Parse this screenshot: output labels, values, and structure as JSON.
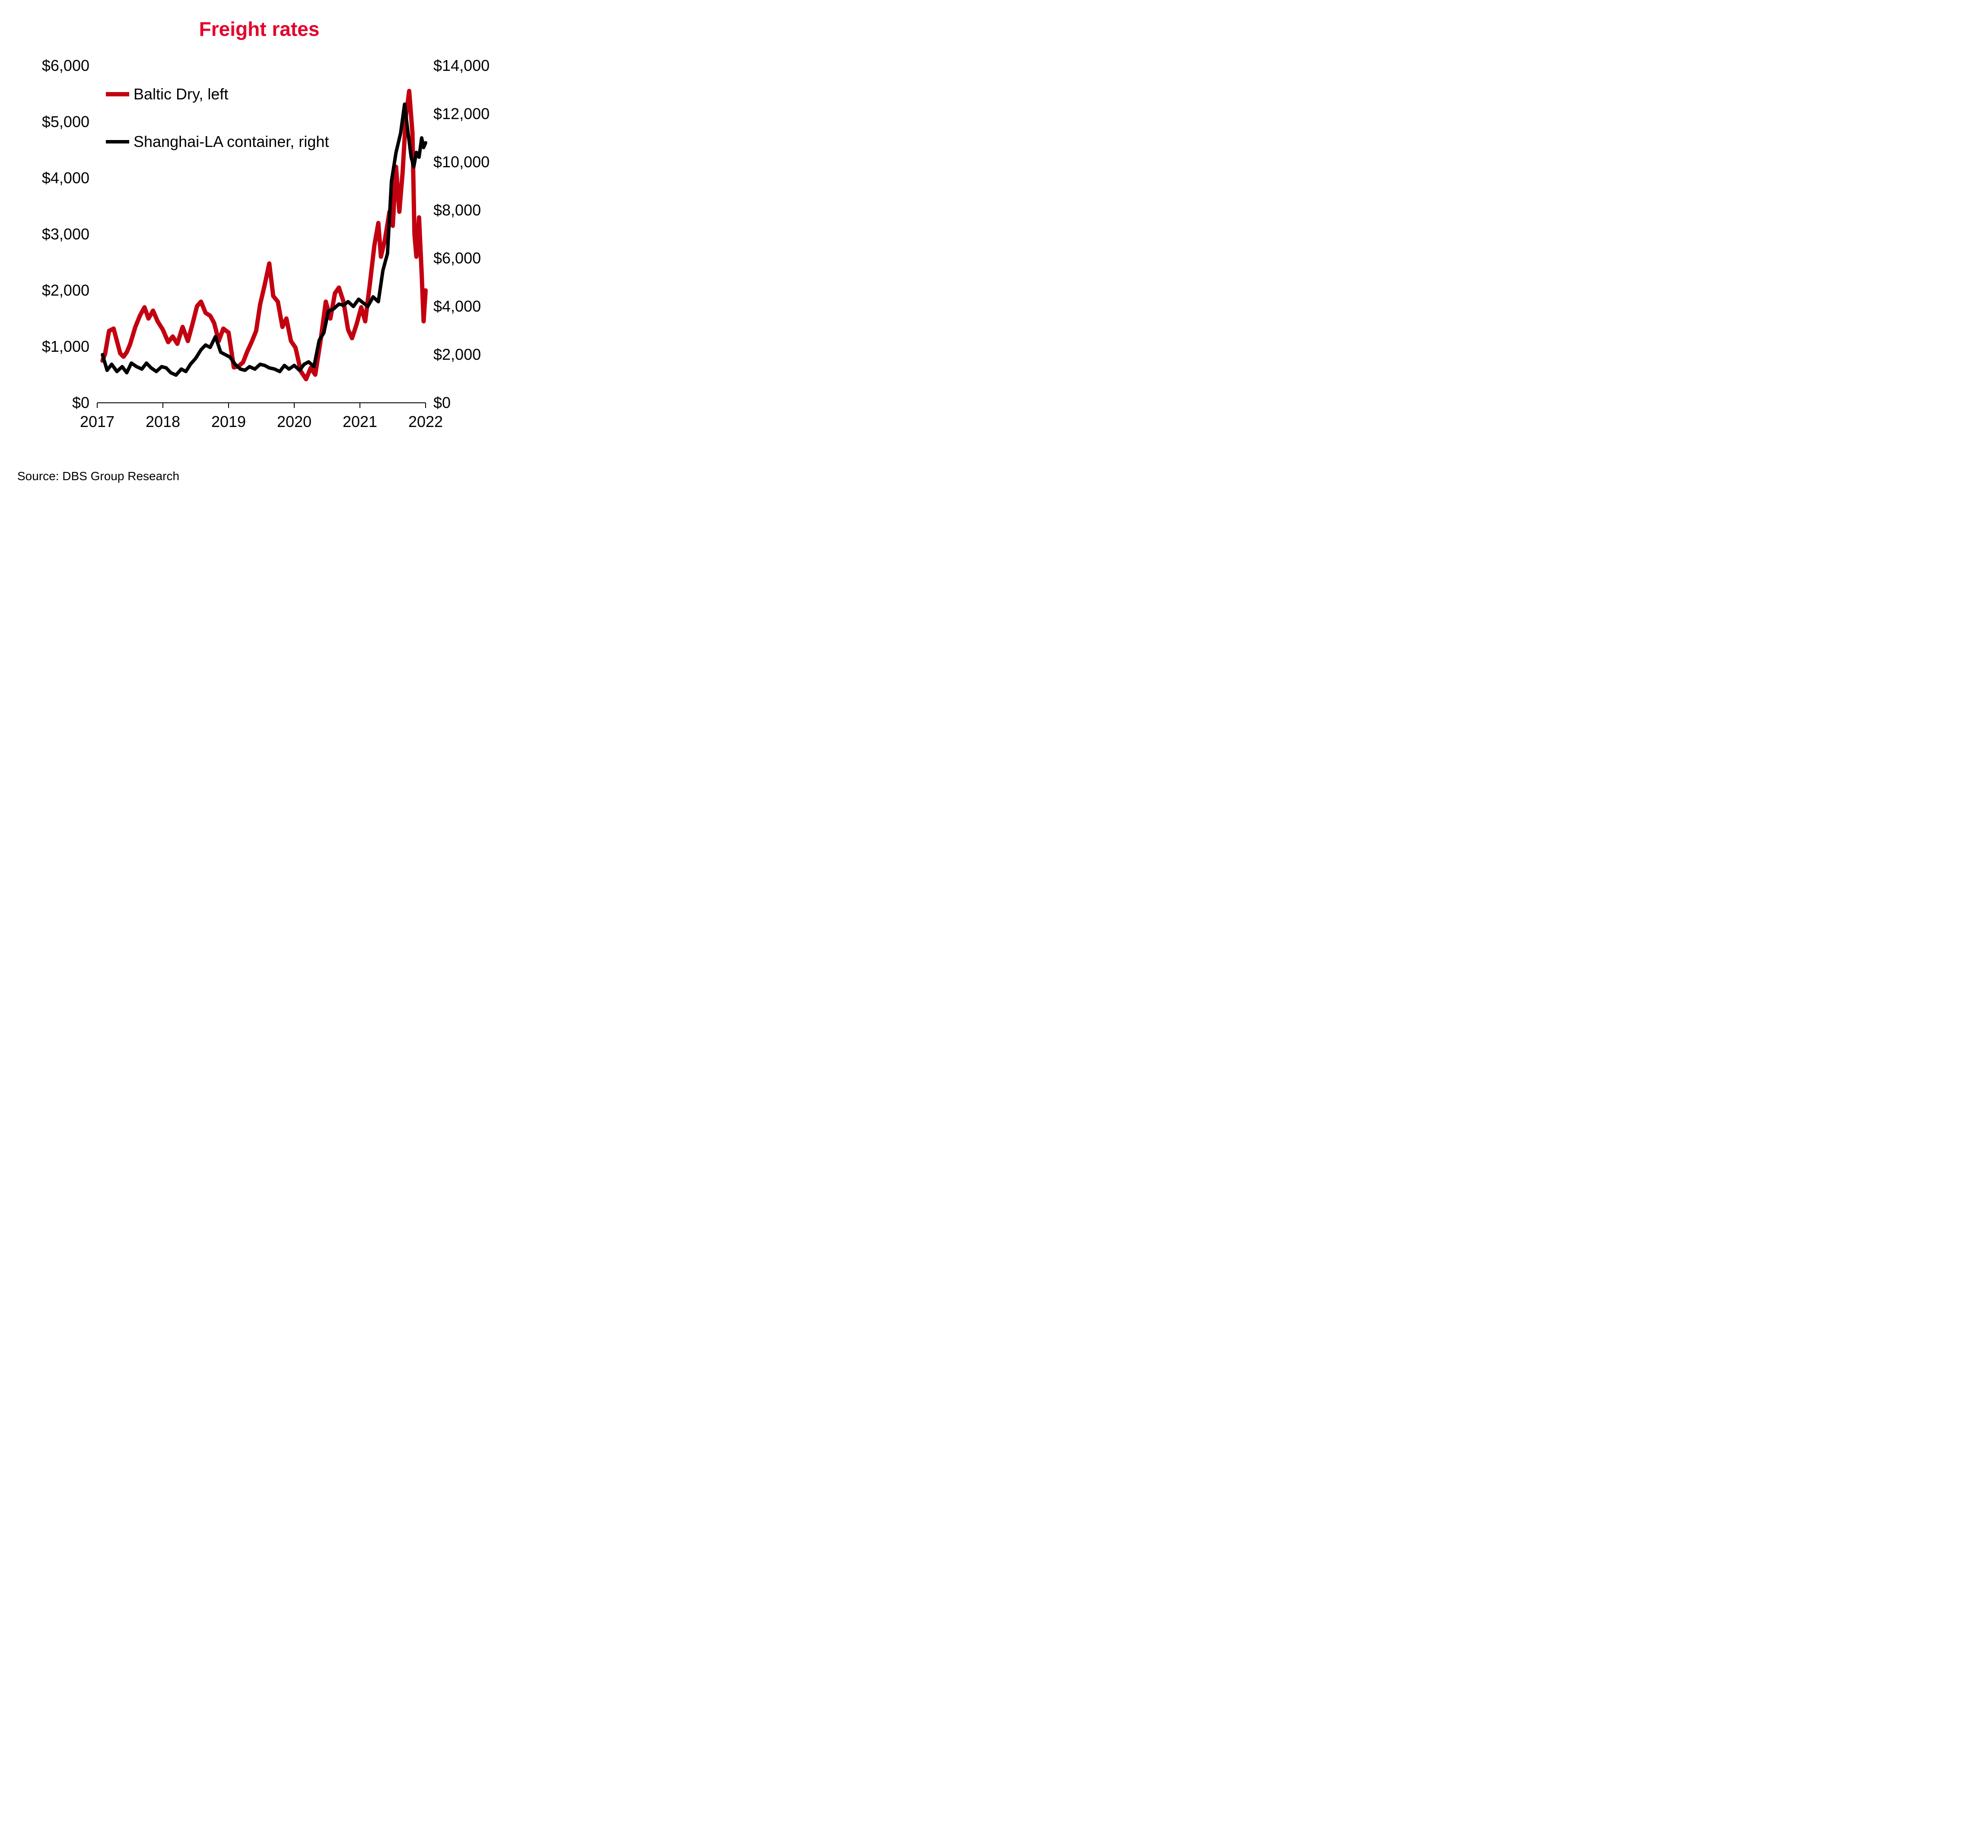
{
  "chart": {
    "type": "line",
    "title": "Freight rates",
    "title_color": "#e4002b",
    "title_fontsize": 46,
    "title_fontweight": 700,
    "background_color": "#ffffff",
    "axis_color": "#000000",
    "text_color": "#000000",
    "tick_fontsize": 36,
    "tick_fontweight": 400,
    "line_width": 8,
    "x": {
      "min": 2017,
      "max": 2022,
      "ticks": [
        2017,
        2018,
        2019,
        2020,
        2021,
        2022
      ],
      "tick_labels": [
        "2017",
        "2018",
        "2019",
        "2020",
        "2021",
        "2022"
      ]
    },
    "y_left": {
      "min": 0,
      "max": 6000,
      "step": 1000,
      "ticks": [
        0,
        1000,
        2000,
        3000,
        4000,
        5000,
        6000
      ],
      "tick_labels": [
        "$0",
        "$1,000",
        "$2,000",
        "$3,000",
        "$4,000",
        "$5,000",
        "$6,000"
      ]
    },
    "y_right": {
      "min": 0,
      "max": 14000,
      "step": 2000,
      "ticks": [
        0,
        2000,
        4000,
        6000,
        8000,
        10000,
        12000,
        14000
      ],
      "tick_labels": [
        "$0",
        "$2,000",
        "$4,000",
        "$6,000",
        "$8,000",
        "$10,000",
        "$12,000",
        "$14,000"
      ]
    },
    "legend": {
      "items": [
        {
          "label": "Baltic Dry, left",
          "color": "#c30010",
          "swatch_width": 54,
          "swatch_height": 10
        },
        {
          "label": "Shanghai-LA container, right",
          "color": "#000000",
          "swatch_width": 54,
          "swatch_height": 8
        }
      ],
      "fontsize": 36,
      "position": "inside-top-left"
    },
    "series": [
      {
        "name": "Baltic Dry",
        "axis": "left",
        "color": "#c30010",
        "line_width": 10,
        "data": [
          [
            2017.08,
            750
          ],
          [
            2017.12,
            870
          ],
          [
            2017.18,
            1280
          ],
          [
            2017.25,
            1320
          ],
          [
            2017.3,
            1100
          ],
          [
            2017.35,
            880
          ],
          [
            2017.4,
            820
          ],
          [
            2017.45,
            900
          ],
          [
            2017.5,
            1040
          ],
          [
            2017.58,
            1350
          ],
          [
            2017.65,
            1550
          ],
          [
            2017.72,
            1700
          ],
          [
            2017.78,
            1500
          ],
          [
            2017.85,
            1640
          ],
          [
            2017.92,
            1450
          ],
          [
            2018.0,
            1300
          ],
          [
            2018.08,
            1080
          ],
          [
            2018.15,
            1180
          ],
          [
            2018.22,
            1050
          ],
          [
            2018.3,
            1350
          ],
          [
            2018.38,
            1100
          ],
          [
            2018.45,
            1400
          ],
          [
            2018.52,
            1720
          ],
          [
            2018.58,
            1800
          ],
          [
            2018.65,
            1600
          ],
          [
            2018.72,
            1550
          ],
          [
            2018.78,
            1420
          ],
          [
            2018.85,
            1100
          ],
          [
            2018.92,
            1320
          ],
          [
            2019.0,
            1250
          ],
          [
            2019.08,
            630
          ],
          [
            2019.15,
            650
          ],
          [
            2019.22,
            720
          ],
          [
            2019.28,
            900
          ],
          [
            2019.35,
            1080
          ],
          [
            2019.42,
            1280
          ],
          [
            2019.48,
            1750
          ],
          [
            2019.55,
            2100
          ],
          [
            2019.62,
            2480
          ],
          [
            2019.68,
            1900
          ],
          [
            2019.75,
            1800
          ],
          [
            2019.82,
            1350
          ],
          [
            2019.88,
            1500
          ],
          [
            2019.95,
            1100
          ],
          [
            2020.02,
            980
          ],
          [
            2020.1,
            560
          ],
          [
            2020.18,
            420
          ],
          [
            2020.25,
            620
          ],
          [
            2020.32,
            500
          ],
          [
            2020.4,
            1100
          ],
          [
            2020.48,
            1800
          ],
          [
            2020.55,
            1500
          ],
          [
            2020.62,
            1950
          ],
          [
            2020.68,
            2050
          ],
          [
            2020.75,
            1800
          ],
          [
            2020.82,
            1300
          ],
          [
            2020.88,
            1150
          ],
          [
            2020.95,
            1400
          ],
          [
            2021.02,
            1700
          ],
          [
            2021.08,
            1450
          ],
          [
            2021.15,
            2100
          ],
          [
            2021.22,
            2800
          ],
          [
            2021.28,
            3200
          ],
          [
            2021.32,
            2600
          ],
          [
            2021.38,
            2900
          ],
          [
            2021.45,
            3400
          ],
          [
            2021.5,
            3150
          ],
          [
            2021.55,
            4200
          ],
          [
            2021.6,
            3400
          ],
          [
            2021.65,
            4100
          ],
          [
            2021.7,
            5100
          ],
          [
            2021.75,
            5550
          ],
          [
            2021.8,
            4800
          ],
          [
            2021.83,
            3000
          ],
          [
            2021.86,
            2600
          ],
          [
            2021.9,
            3300
          ],
          [
            2021.94,
            2300
          ],
          [
            2021.97,
            1450
          ],
          [
            2022.0,
            2000
          ]
        ]
      },
      {
        "name": "Shanghai-LA container",
        "axis": "right",
        "color": "#000000",
        "line_width": 8,
        "data": [
          [
            2017.08,
            2000
          ],
          [
            2017.15,
            1350
          ],
          [
            2017.22,
            1600
          ],
          [
            2017.3,
            1300
          ],
          [
            2017.38,
            1500
          ],
          [
            2017.45,
            1250
          ],
          [
            2017.52,
            1650
          ],
          [
            2017.6,
            1500
          ],
          [
            2017.68,
            1400
          ],
          [
            2017.75,
            1650
          ],
          [
            2017.82,
            1450
          ],
          [
            2017.9,
            1300
          ],
          [
            2017.98,
            1500
          ],
          [
            2018.05,
            1450
          ],
          [
            2018.12,
            1250
          ],
          [
            2018.2,
            1150
          ],
          [
            2018.28,
            1400
          ],
          [
            2018.35,
            1300
          ],
          [
            2018.42,
            1600
          ],
          [
            2018.5,
            1850
          ],
          [
            2018.58,
            2200
          ],
          [
            2018.65,
            2400
          ],
          [
            2018.72,
            2300
          ],
          [
            2018.8,
            2750
          ],
          [
            2018.88,
            2100
          ],
          [
            2018.95,
            2000
          ],
          [
            2019.02,
            1900
          ],
          [
            2019.1,
            1600
          ],
          [
            2019.18,
            1400
          ],
          [
            2019.25,
            1350
          ],
          [
            2019.32,
            1500
          ],
          [
            2019.4,
            1400
          ],
          [
            2019.48,
            1600
          ],
          [
            2019.55,
            1550
          ],
          [
            2019.62,
            1450
          ],
          [
            2019.7,
            1400
          ],
          [
            2019.78,
            1300
          ],
          [
            2019.85,
            1550
          ],
          [
            2019.92,
            1400
          ],
          [
            2020.0,
            1550
          ],
          [
            2020.08,
            1350
          ],
          [
            2020.15,
            1600
          ],
          [
            2020.22,
            1700
          ],
          [
            2020.3,
            1500
          ],
          [
            2020.38,
            2600
          ],
          [
            2020.45,
            2900
          ],
          [
            2020.52,
            3800
          ],
          [
            2020.6,
            3900
          ],
          [
            2020.68,
            4100
          ],
          [
            2020.75,
            4050
          ],
          [
            2020.82,
            4200
          ],
          [
            2020.9,
            4000
          ],
          [
            2020.98,
            4300
          ],
          [
            2021.05,
            4150
          ],
          [
            2021.12,
            4000
          ],
          [
            2021.2,
            4400
          ],
          [
            2021.28,
            4200
          ],
          [
            2021.35,
            5500
          ],
          [
            2021.42,
            6200
          ],
          [
            2021.48,
            9200
          ],
          [
            2021.55,
            10400
          ],
          [
            2021.62,
            11200
          ],
          [
            2021.68,
            12400
          ],
          [
            2021.72,
            11500
          ],
          [
            2021.78,
            10200
          ],
          [
            2021.82,
            9800
          ],
          [
            2021.86,
            10400
          ],
          [
            2021.9,
            10200
          ],
          [
            2021.94,
            11000
          ],
          [
            2021.97,
            10600
          ],
          [
            2022.0,
            10800
          ]
        ]
      }
    ]
  },
  "source": {
    "label": "Source: DBS Group Research",
    "fontsize": 28,
    "color": "#000000"
  }
}
